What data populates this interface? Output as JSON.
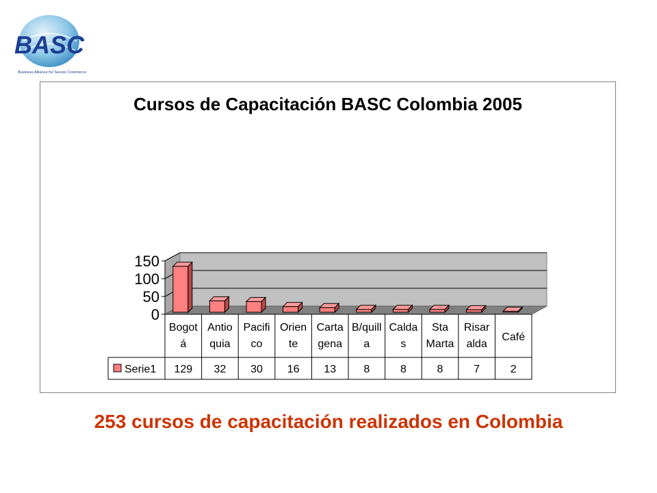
{
  "logo": {
    "text": "BASC",
    "tagline": "Business Alliance for Secure Commerce"
  },
  "chart_data": {
    "type": "bar",
    "title": "Cursos de Capacitación BASC Colombia 2005",
    "categories": [
      [
        "Bogot",
        "á"
      ],
      [
        "Antio",
        "quia"
      ],
      [
        "Pacifi",
        "co"
      ],
      [
        "Orien",
        "te"
      ],
      [
        "Carta",
        "gena"
      ],
      [
        "B/quill",
        "a"
      ],
      [
        "Calda",
        "s"
      ],
      [
        "Sta",
        "Marta"
      ],
      [
        "Risar",
        "alda"
      ],
      [
        "Café"
      ]
    ],
    "series": [
      {
        "name": "Serie1",
        "values": [
          129,
          32,
          30,
          16,
          13,
          8,
          8,
          8,
          7,
          2
        ]
      }
    ],
    "yticks": [
      0,
      50,
      100,
      150
    ],
    "ylim": [
      0,
      150
    ],
    "grid": true,
    "legend": "data-table",
    "bar_color": "#ff8080",
    "wall_color": "#c0c0c0"
  },
  "caption": "253 cursos de capacitación realizados en Colombia"
}
